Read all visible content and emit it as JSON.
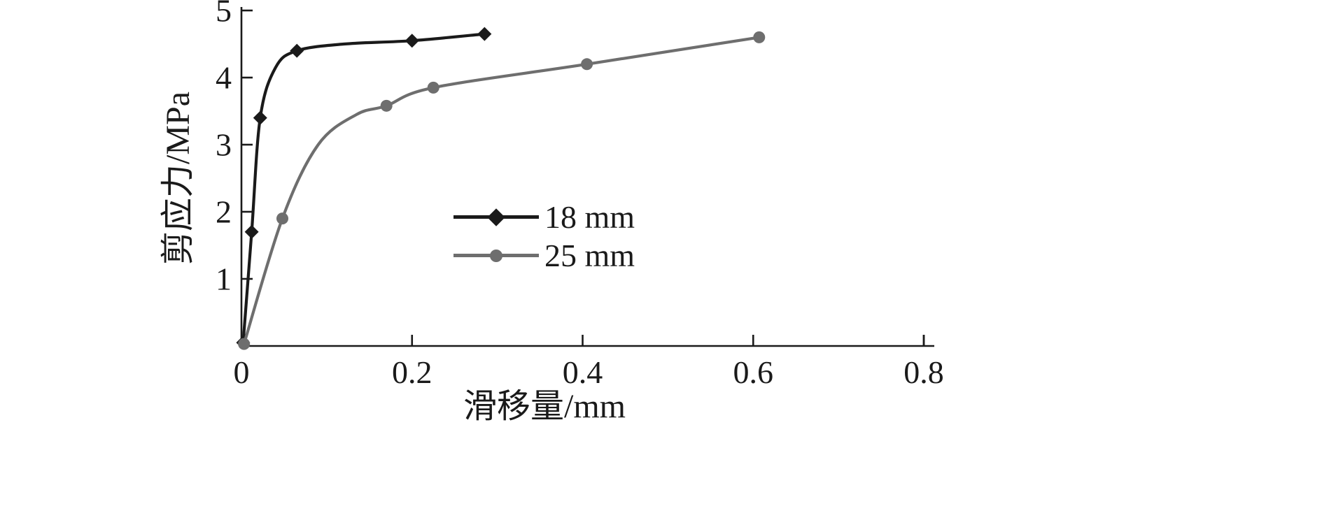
{
  "chart_data": {
    "type": "line",
    "title": "",
    "xlabel": "滑移量/mm",
    "ylabel": "剪应力/MPa",
    "xlim": [
      0,
      0.8
    ],
    "ylim": [
      0,
      5
    ],
    "x_ticks": [
      0,
      0.2,
      0.4,
      0.6,
      0.8
    ],
    "x_tick_labels": [
      "0",
      "0.2",
      "0.4",
      "0.6",
      "0.8"
    ],
    "y_ticks": [
      1,
      2,
      3,
      4,
      5
    ],
    "y_tick_labels": [
      "1",
      "2",
      "3",
      "4",
      "5"
    ],
    "grid": false,
    "legend_position": "inside-left-center",
    "axis_color": "#1a1a1a",
    "series": [
      {
        "name": "18 mm",
        "color": "#1a1a1a",
        "marker": "diamond",
        "points": [
          [
            0.002,
            0.05
          ],
          [
            0.012,
            1.7
          ],
          [
            0.022,
            3.4
          ],
          [
            0.065,
            4.4
          ],
          [
            0.2,
            4.55
          ],
          [
            0.285,
            4.65
          ]
        ],
        "curve": [
          [
            0.002,
            0.05
          ],
          [
            0.012,
            1.7
          ],
          [
            0.022,
            3.4
          ],
          [
            0.04,
            4.15
          ],
          [
            0.065,
            4.4
          ],
          [
            0.12,
            4.5
          ],
          [
            0.2,
            4.55
          ],
          [
            0.285,
            4.65
          ]
        ]
      },
      {
        "name": "25 mm",
        "color": "#6e6e6e",
        "marker": "circle",
        "points": [
          [
            0.003,
            0.03
          ],
          [
            0.048,
            1.9
          ],
          [
            0.17,
            3.58
          ],
          [
            0.225,
            3.85
          ],
          [
            0.405,
            4.2
          ],
          [
            0.607,
            4.6
          ]
        ],
        "curve": [
          [
            0.003,
            0.03
          ],
          [
            0.048,
            1.9
          ],
          [
            0.09,
            3.0
          ],
          [
            0.135,
            3.45
          ],
          [
            0.17,
            3.58
          ],
          [
            0.225,
            3.85
          ],
          [
            0.405,
            4.2
          ],
          [
            0.607,
            4.6
          ]
        ]
      }
    ]
  }
}
